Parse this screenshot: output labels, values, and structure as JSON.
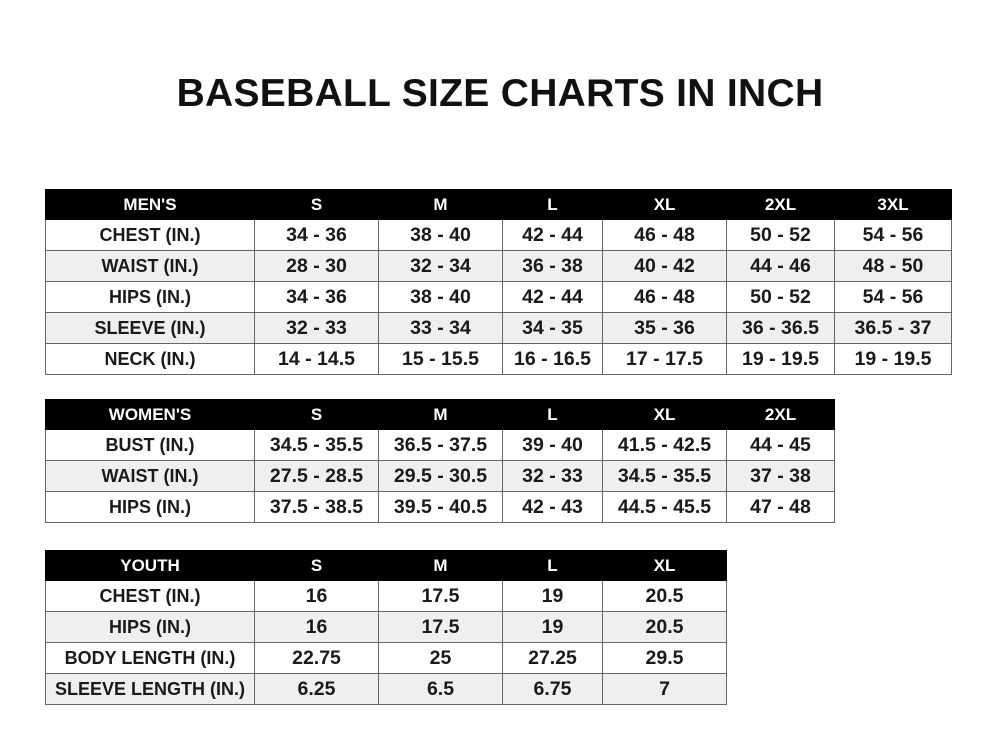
{
  "title": "BASEBALL SIZE CHARTS IN INCH",
  "tables": [
    {
      "headers": [
        "MEN'S",
        "S",
        "M",
        "L",
        "XL",
        "2XL",
        "3XL"
      ],
      "rows": [
        [
          "CHEST (IN.)",
          "34 - 36",
          "38 - 40",
          "42 - 44",
          "46 - 48",
          "50 - 52",
          "54 - 56"
        ],
        [
          "WAIST (IN.)",
          "28 - 30",
          "32 - 34",
          "36 - 38",
          "40 - 42",
          "44 - 46",
          "48 - 50"
        ],
        [
          "HIPS (IN.)",
          "34 - 36",
          "38 - 40",
          "42 - 44",
          "46 - 48",
          "50 - 52",
          "54 - 56"
        ],
        [
          "SLEEVE (IN.)",
          "32 - 33",
          "33 - 34",
          "34 - 35",
          "35 - 36",
          "36 - 36.5",
          "36.5 - 37"
        ],
        [
          "NECK (IN.)",
          "14 - 14.5",
          "15 - 15.5",
          "16 - 16.5",
          "17 - 17.5",
          "19 - 19.5",
          "19 - 19.5"
        ]
      ]
    },
    {
      "headers": [
        "WOMEN'S",
        "S",
        "M",
        "L",
        "XL",
        "2XL"
      ],
      "rows": [
        [
          "BUST (IN.)",
          "34.5 - 35.5",
          "36.5 - 37.5",
          "39 - 40",
          "41.5 - 42.5",
          "44 - 45"
        ],
        [
          "WAIST (IN.)",
          "27.5 - 28.5",
          "29.5 - 30.5",
          "32 - 33",
          "34.5 - 35.5",
          "37 - 38"
        ],
        [
          "HIPS (IN.)",
          "37.5 - 38.5",
          "39.5 - 40.5",
          "42 - 43",
          "44.5 - 45.5",
          "47 - 48"
        ]
      ]
    },
    {
      "headers": [
        "YOUTH",
        "S",
        "M",
        "L",
        "XL"
      ],
      "rows": [
        [
          "CHEST (IN.)",
          "16",
          "17.5",
          "19",
          "20.5"
        ],
        [
          "HIPS (IN.)",
          "16",
          "17.5",
          "19",
          "20.5"
        ],
        [
          "BODY LENGTH (IN.)",
          "22.75",
          "25",
          "27.25",
          "29.5"
        ],
        [
          "SLEEVE LENGTH (IN.)",
          "6.25",
          "6.5",
          "6.75",
          "7"
        ]
      ]
    }
  ]
}
